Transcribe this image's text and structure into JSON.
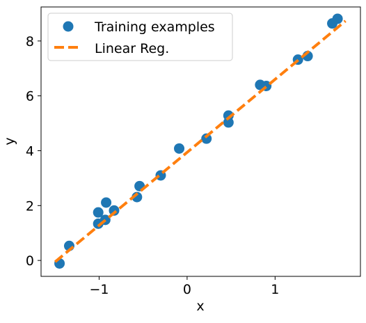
{
  "chart_data": {
    "type": "scatter",
    "xlabel": "x",
    "ylabel": "y",
    "xlim": [
      -1.66,
      1.97
    ],
    "ylim": [
      -0.58,
      9.24
    ],
    "x_ticks": [
      -1,
      0,
      1
    ],
    "x_tick_labels": [
      "−1",
      "0",
      "1"
    ],
    "y_ticks": [
      0,
      2,
      4,
      6,
      8
    ],
    "y_tick_labels": [
      "0",
      "2",
      "4",
      "6",
      "8"
    ],
    "grid": false,
    "legend_position": "top-left",
    "series": [
      {
        "name": "Training examples",
        "kind": "points",
        "color": "#1f77b4",
        "points": [
          {
            "x": -1.45,
            "y": -0.11
          },
          {
            "x": -1.34,
            "y": 0.53
          },
          {
            "x": -1.01,
            "y": 1.34
          },
          {
            "x": -1.01,
            "y": 1.75
          },
          {
            "x": -0.93,
            "y": 1.48
          },
          {
            "x": -0.92,
            "y": 2.11
          },
          {
            "x": -0.83,
            "y": 1.82
          },
          {
            "x": -0.57,
            "y": 2.31
          },
          {
            "x": -0.54,
            "y": 2.71
          },
          {
            "x": -0.3,
            "y": 3.1
          },
          {
            "x": -0.09,
            "y": 4.08
          },
          {
            "x": 0.22,
            "y": 4.44
          },
          {
            "x": 0.47,
            "y": 5.03
          },
          {
            "x": 0.47,
            "y": 5.28
          },
          {
            "x": 0.83,
            "y": 6.4
          },
          {
            "x": 0.9,
            "y": 6.36
          },
          {
            "x": 1.26,
            "y": 7.32
          },
          {
            "x": 1.37,
            "y": 7.45
          },
          {
            "x": 1.65,
            "y": 8.64
          },
          {
            "x": 1.71,
            "y": 8.81
          }
        ]
      },
      {
        "name": "Linear Reg.",
        "kind": "dashed-line",
        "color": "#ff7f0e",
        "points": [
          {
            "x": -1.5,
            "y": -0.05
          },
          {
            "x": 1.8,
            "y": 8.73
          }
        ]
      }
    ]
  }
}
